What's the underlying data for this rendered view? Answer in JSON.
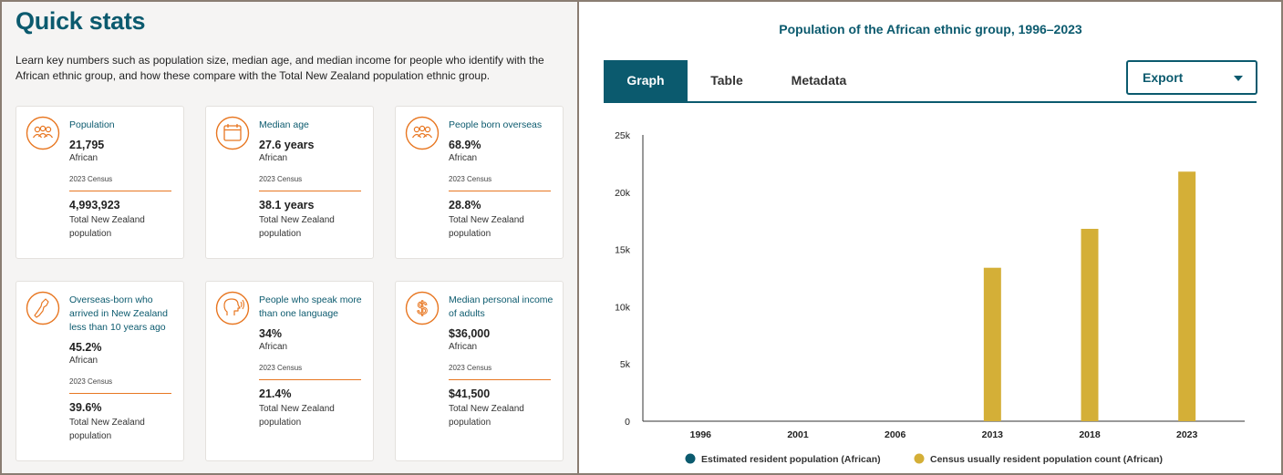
{
  "quick_stats": {
    "title": "Quick stats",
    "intro": "Learn key numbers such as population size, median age, and median income for people who identify with the African ethnic group, and how these compare with the Total New Zealand population ethnic group.",
    "cards": [
      {
        "label": "Population",
        "value": "21,795",
        "group": "African",
        "source": "2023 Census",
        "value2": "4,993,923",
        "group2": "Total New Zealand population",
        "icon": "people-group-icon"
      },
      {
        "label": "Median age",
        "value": "27.6 years",
        "group": "African",
        "source": "2023 Census",
        "value2": "38.1 years",
        "group2": "Total New Zealand population",
        "icon": "calendar-icon"
      },
      {
        "label": "People born overseas",
        "value": "68.9%",
        "group": "African",
        "source": "2023 Census",
        "value2": "28.8%",
        "group2": "Total New Zealand population",
        "icon": "people-group-icon"
      },
      {
        "label": "Overseas-born who arrived in New Zealand less than 10 years ago",
        "value": "45.2%",
        "group": "African",
        "source": "2023 Census",
        "value2": "39.6%",
        "group2": "Total New Zealand population",
        "icon": "new-zealand-map-icon"
      },
      {
        "label": "People who speak more than one language",
        "value": "34%",
        "group": "African",
        "source": "2023 Census",
        "value2": "21.4%",
        "group2": "Total New Zealand population",
        "icon": "speaking-head-icon"
      },
      {
        "label": "Median personal income of adults",
        "value": "$36,000",
        "group": "African",
        "source": "2023 Census",
        "value2": "$41,500",
        "group2": "Total New Zealand population",
        "icon": "dollar-icon"
      }
    ]
  },
  "chart_panel": {
    "tabs": [
      "Graph",
      "Table",
      "Metadata"
    ],
    "active_tab": "Graph",
    "export_label": "Export"
  },
  "colors": {
    "teal": "#0b5a6e",
    "orange": "#e87722",
    "gold": "#d4af37",
    "series1": "#0b5a6e"
  },
  "chart_data": {
    "type": "bar",
    "title": "Population of the African ethnic group, 1996–2023",
    "categories": [
      "1996",
      "2001",
      "2006",
      "2013",
      "2018",
      "2023"
    ],
    "series": [
      {
        "name": "Estimated resident population (African)",
        "values": [
          null,
          null,
          null,
          null,
          null,
          null
        ]
      },
      {
        "name": "Census usually resident population count (African)",
        "values": [
          null,
          null,
          null,
          13400,
          16800,
          21795
        ]
      }
    ],
    "yticks": [
      0,
      5000,
      10000,
      15000,
      20000,
      25000
    ],
    "ytick_labels": [
      "0",
      "5k",
      "10k",
      "15k",
      "20k",
      "25k"
    ],
    "ylim": [
      0,
      25000
    ],
    "xlabel": "",
    "ylabel": "",
    "legend": "bottom"
  }
}
